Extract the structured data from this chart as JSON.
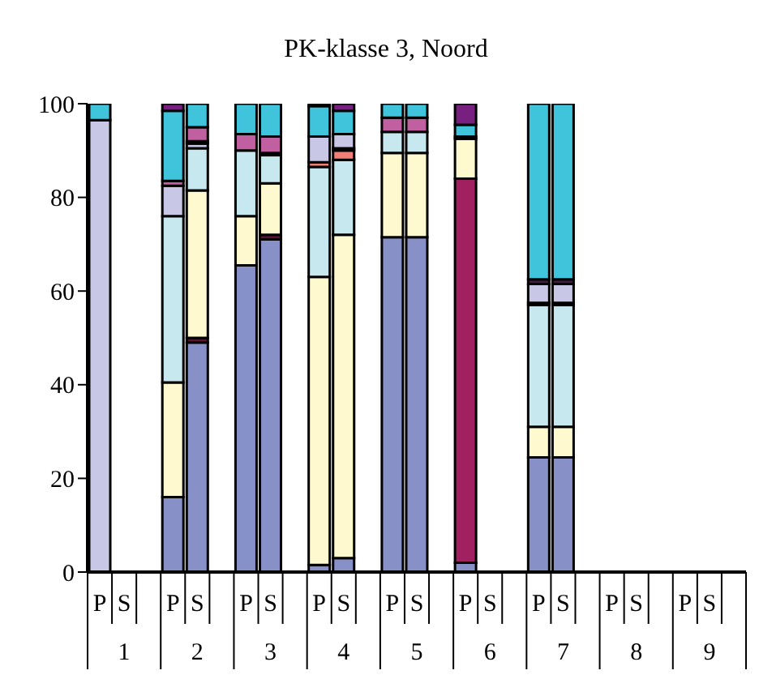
{
  "chart_data": {
    "type": "bar",
    "title": "PK-klasse 3, Noord",
    "stacked": true,
    "categories": [
      "P",
      "S",
      null,
      "P",
      "S",
      null,
      "P",
      "S",
      null,
      "P",
      "S",
      null,
      "P",
      "S",
      null,
      "P",
      "S",
      null,
      "P",
      "S",
      null,
      "P",
      "S",
      null,
      "P",
      "S",
      null
    ],
    "annotations": [
      "1",
      "2",
      "3",
      "4",
      "5",
      "6",
      "7",
      "8",
      "9"
    ],
    "series": [
      {
        "color": "#8890c8",
        "values": [
          null,
          null,
          null,
          16,
          49,
          null,
          65.5,
          71,
          null,
          1.5,
          3,
          null,
          71.5,
          71.5,
          null,
          2,
          null,
          null,
          24.5,
          24.5,
          null,
          null,
          null,
          null,
          null,
          null,
          null
        ]
      },
      {
        "color": "#a02060",
        "values": [
          null,
          null,
          null,
          null,
          null,
          null,
          null,
          null,
          null,
          null,
          null,
          null,
          null,
          null,
          null,
          82,
          null,
          null,
          null,
          null,
          null,
          null,
          null,
          null,
          null,
          null,
          null
        ]
      },
      {
        "color": "#601030",
        "values": [
          null,
          null,
          null,
          null,
          1,
          null,
          null,
          1,
          null,
          null,
          null,
          null,
          null,
          null,
          null,
          null,
          null,
          null,
          null,
          null,
          null,
          null,
          null,
          null,
          null,
          null,
          null
        ]
      },
      {
        "color": "#fff9d0",
        "values": [
          null,
          null,
          null,
          24.5,
          31.5,
          null,
          10.5,
          11,
          null,
          61.5,
          69,
          null,
          18,
          18,
          null,
          8.5,
          null,
          null,
          6.5,
          6.5,
          null,
          null,
          null,
          null,
          null,
          null,
          null
        ]
      },
      {
        "color": "#c8e8f0",
        "values": [
          null,
          null,
          null,
          35.5,
          9,
          null,
          14,
          6,
          null,
          23.5,
          16,
          null,
          4.5,
          4.5,
          null,
          null,
          null,
          null,
          26,
          26,
          null,
          null,
          null,
          null,
          null,
          null,
          null
        ]
      },
      {
        "color": "#f08078",
        "values": [
          null,
          null,
          null,
          null,
          null,
          null,
          null,
          null,
          null,
          1,
          2,
          null,
          null,
          null,
          null,
          null,
          null,
          null,
          null,
          null,
          null,
          null,
          null,
          null,
          null,
          null,
          null
        ]
      },
      {
        "color": "#402040",
        "values": [
          null,
          null,
          null,
          null,
          null,
          null,
          null,
          0.5,
          null,
          null,
          0.5,
          null,
          null,
          null,
          null,
          0.5,
          null,
          null,
          0.5,
          0.5,
          null,
          null,
          null,
          null,
          null,
          null,
          null
        ]
      },
      {
        "color": "#c8c8e6",
        "values": [
          96.5,
          null,
          null,
          6.5,
          1,
          null,
          null,
          null,
          null,
          5.5,
          3,
          null,
          null,
          null,
          null,
          null,
          null,
          null,
          4,
          4,
          null,
          null,
          null,
          null,
          null,
          null,
          null
        ]
      },
      {
        "color": "#402040",
        "values": [
          null,
          null,
          null,
          null,
          0.5,
          null,
          null,
          null,
          null,
          null,
          null,
          null,
          null,
          null,
          null,
          null,
          null,
          null,
          1,
          1,
          null,
          null,
          null,
          null,
          null,
          null,
          null
        ]
      },
      {
        "color": "#c060a0",
        "values": [
          null,
          null,
          null,
          1,
          3,
          null,
          3.5,
          3.5,
          null,
          null,
          null,
          null,
          3,
          3,
          null,
          null,
          null,
          null,
          null,
          null,
          null,
          null,
          null,
          null,
          null,
          null,
          null
        ]
      },
      {
        "color": "#40c4dc",
        "values": [
          3.5,
          null,
          null,
          15,
          5,
          null,
          6.5,
          7,
          null,
          6.5,
          5,
          null,
          3,
          3,
          null,
          2.5,
          null,
          null,
          37.5,
          37.5,
          null,
          null,
          null,
          null,
          null,
          null,
          null
        ]
      },
      {
        "color": "#782080",
        "values": [
          null,
          null,
          null,
          1.5,
          null,
          null,
          null,
          null,
          null,
          0.5,
          1.5,
          null,
          null,
          null,
          null,
          4.5,
          null,
          null,
          null,
          null,
          null,
          null,
          null,
          null,
          null,
          null,
          null
        ]
      }
    ],
    "ylim": [
      0,
      100
    ],
    "yticks": [
      0,
      20,
      40,
      60,
      80,
      100
    ],
    "grid": false,
    "legend": false
  }
}
